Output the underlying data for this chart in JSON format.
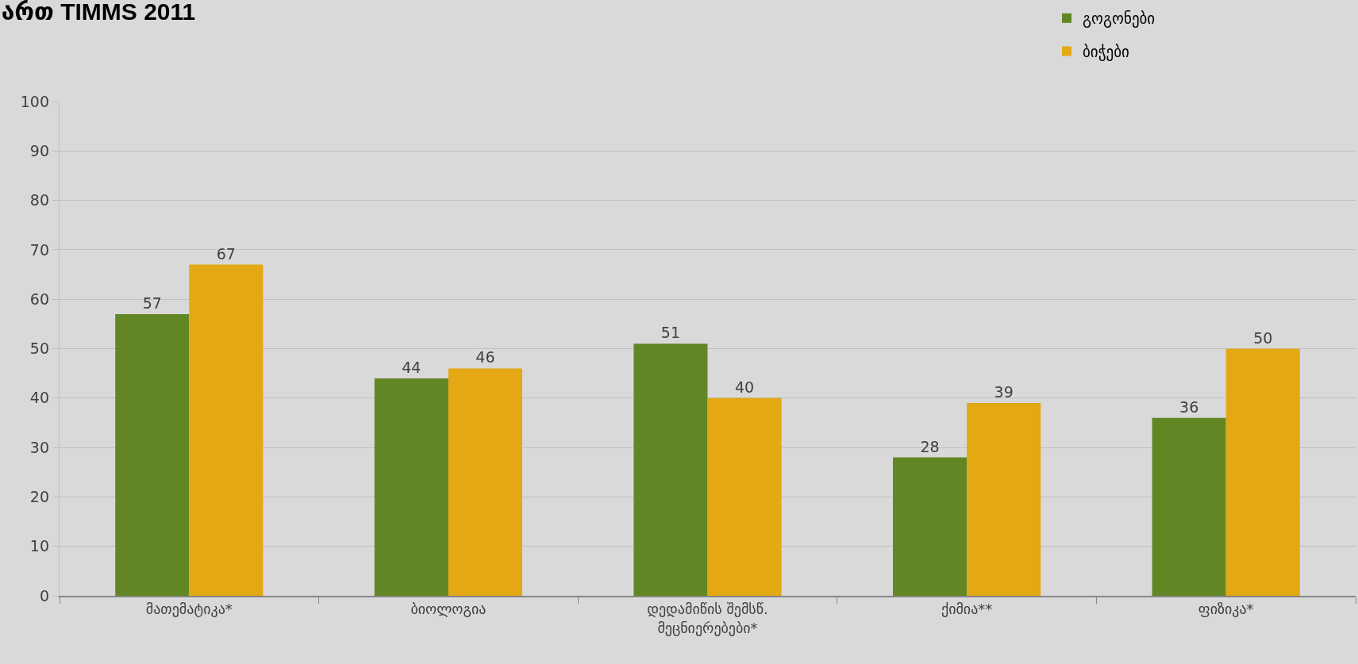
{
  "chart_data": {
    "type": "bar",
    "title": "ართ TIMMS 2011",
    "categories": [
      "მათემატიკა*",
      "ბიოლოგია",
      "დედამიწის შემსწ. მეცნიერებები*",
      "ქიმია**",
      "ფიზიკა*"
    ],
    "series": [
      {
        "name": "გოგონები",
        "color": "#638625",
        "values": [
          57,
          44,
          51,
          28,
          36
        ]
      },
      {
        "name": "ბიჭები",
        "color": "#e3a814",
        "values": [
          67,
          46,
          40,
          39,
          50
        ]
      }
    ],
    "ylim": [
      0,
      100
    ],
    "yticks": [
      0,
      10,
      20,
      30,
      40,
      50,
      60,
      70,
      80,
      90,
      100
    ],
    "grid": "y",
    "data_labels": true,
    "legend": "top right"
  }
}
